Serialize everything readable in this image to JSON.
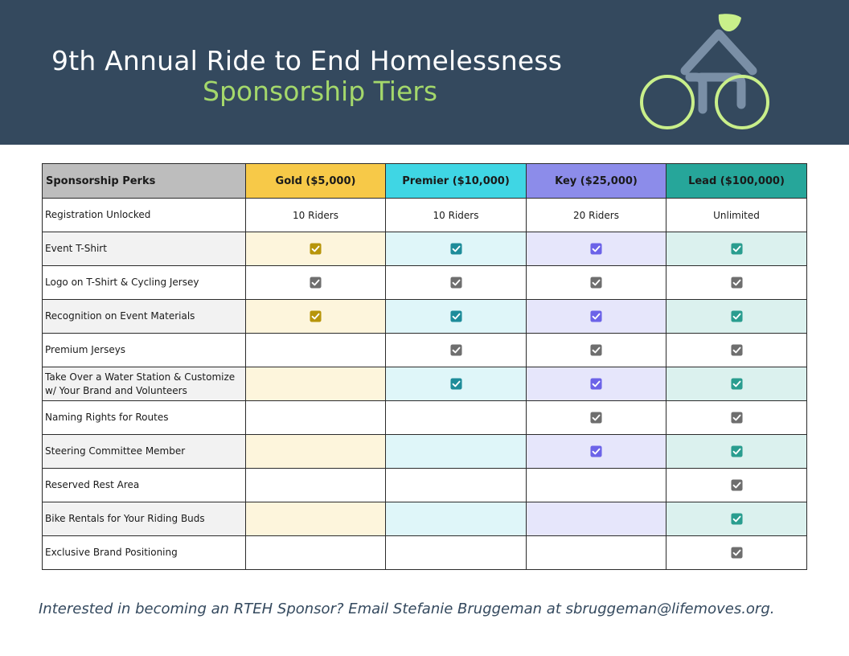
{
  "header": {
    "title": "9th Annual Ride to End Homelessness",
    "subtitle": "Sponsorship Tiers"
  },
  "logo": {
    "icon": "bicycle-house-logo-icon",
    "colors": {
      "frame": "#7a8fa6",
      "wheels": "#c9ef8a",
      "leaf": "#c9ef8a"
    }
  },
  "colors": {
    "header_bg": "#34495e",
    "subtitle": "#a4d86b",
    "check_gray": "#6e6e6e"
  },
  "table": {
    "perk_header": "Sponsorship Perks",
    "tiers": [
      {
        "label": "Gold ($5,000)",
        "header_color": "#f7c948",
        "tint": "#fdf5dc",
        "check_color": "#b7950b"
      },
      {
        "label": "Premier ($10,000)",
        "header_color": "#3fd6e4",
        "tint": "#dff6f9",
        "check_color": "#1e8c9a"
      },
      {
        "label": "Key ($25,000)",
        "header_color": "#8c8cea",
        "tint": "#e6e6fb",
        "check_color": "#6c63e8"
      },
      {
        "label": "Lead ($100,000)",
        "header_color": "#26a69a",
        "tint": "#dbf1ee",
        "check_color": "#2a9d8f"
      }
    ],
    "rows": [
      {
        "perk": "Registration Unlocked",
        "tinted": false,
        "values": [
          "10 Riders",
          "10 Riders",
          "20 Riders",
          "Unlimited"
        ]
      },
      {
        "perk": "Event T-Shirt",
        "tinted": true,
        "values": [
          true,
          true,
          true,
          true
        ]
      },
      {
        "perk": "Logo on T-Shirt & Cycling Jersey",
        "tinted": false,
        "values": [
          true,
          true,
          true,
          true
        ]
      },
      {
        "perk": "Recognition on Event Materials",
        "tinted": true,
        "values": [
          true,
          true,
          true,
          true
        ]
      },
      {
        "perk": "Premium Jerseys",
        "tinted": false,
        "values": [
          false,
          true,
          true,
          true
        ]
      },
      {
        "perk": "Take Over a Water Station & Customize w/ Your Brand and Volunteers",
        "tinted": true,
        "values": [
          false,
          true,
          true,
          true
        ]
      },
      {
        "perk": "Naming Rights for Routes",
        "tinted": false,
        "values": [
          false,
          false,
          true,
          true
        ]
      },
      {
        "perk": "Steering Committee Member",
        "tinted": true,
        "values": [
          false,
          false,
          true,
          true
        ]
      },
      {
        "perk": "Reserved Rest Area",
        "tinted": false,
        "values": [
          false,
          false,
          false,
          true
        ]
      },
      {
        "perk": "Bike Rentals for Your Riding Buds",
        "tinted": true,
        "values": [
          false,
          false,
          false,
          true
        ]
      },
      {
        "perk": "Exclusive Brand Positioning",
        "tinted": false,
        "values": [
          false,
          false,
          false,
          true
        ]
      }
    ]
  },
  "footer": {
    "text": "Interested in becoming an RTEH Sponsor? Email Stefanie Bruggeman at sbruggeman@lifemoves.org."
  }
}
